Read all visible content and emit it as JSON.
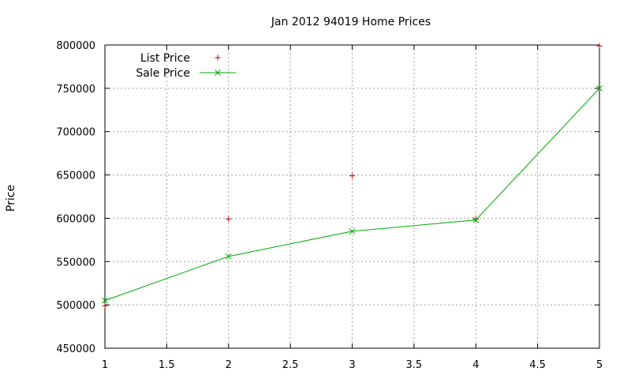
{
  "chart_data": {
    "type": "line",
    "title": "Jan 2012 94019 Home Prices",
    "xlabel": "",
    "ylabel": "Price",
    "x": [
      1,
      2,
      3,
      4,
      5
    ],
    "xlim": [
      1,
      5
    ],
    "ylim": [
      450000,
      800000
    ],
    "xticks": [
      "1",
      "1.5",
      "2",
      "2.5",
      "3",
      "3.5",
      "4",
      "4.5",
      "5"
    ],
    "yticks": [
      "450000",
      "500000",
      "550000",
      "600000",
      "650000",
      "700000",
      "750000",
      "800000"
    ],
    "grid": true,
    "legend_position": "top-left",
    "series": [
      {
        "name": "List Price",
        "style": "points",
        "marker": "plus",
        "color": "#cc0000",
        "values": [
          499000,
          599000,
          649000,
          599000,
          799000
        ]
      },
      {
        "name": "Sale Price",
        "style": "linespoints",
        "marker": "cross",
        "color": "#00aa00",
        "values": [
          505000,
          556000,
          585000,
          598000,
          750000
        ]
      }
    ]
  }
}
